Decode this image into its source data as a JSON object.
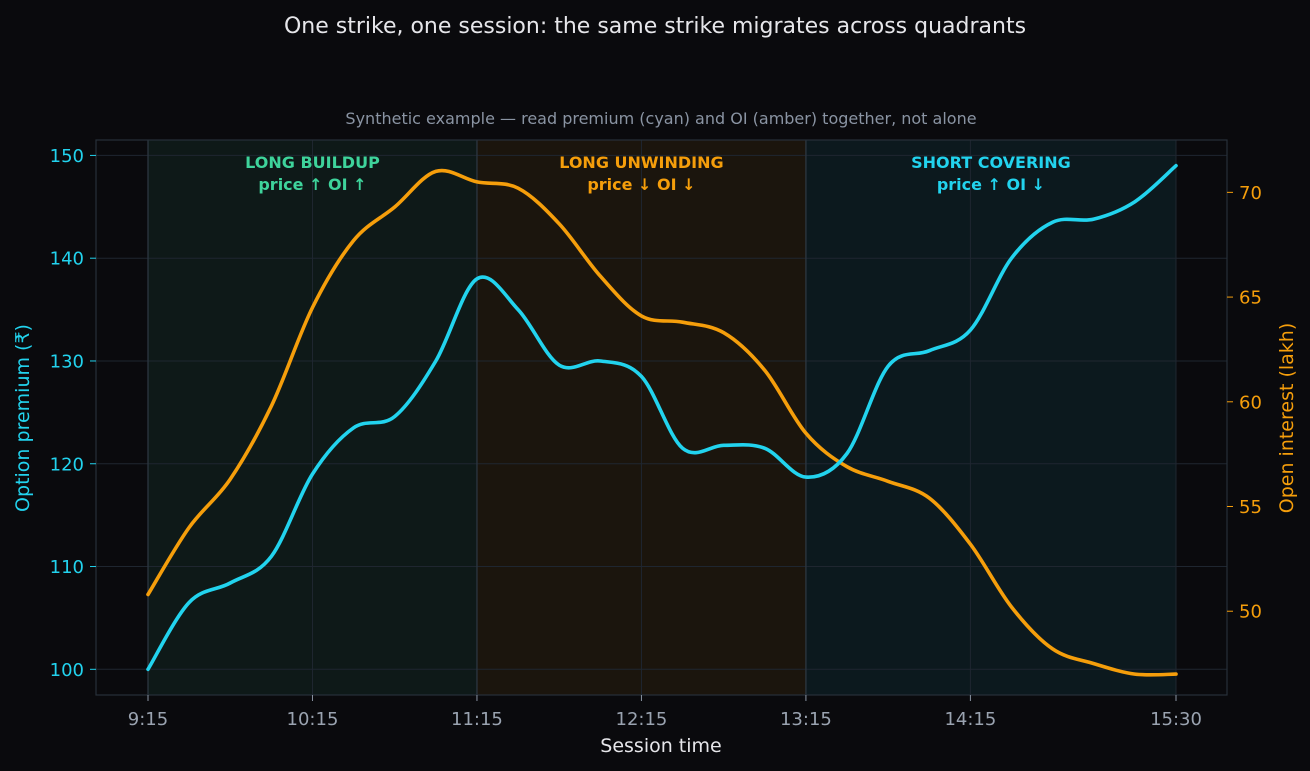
{
  "chart_data": {
    "type": "line",
    "title": "One strike, one session: the same strike migrates across quadrants",
    "subtitle": "Synthetic example — read premium (cyan) and OI (amber) together, not alone",
    "xlabel": "Session time",
    "ylabel_left": "Option premium (₹)",
    "ylabel_right": "Open interest (lakh)",
    "x_ticks": [
      "9:15",
      "10:15",
      "11:15",
      "12:15",
      "13:15",
      "14:15",
      "15:30"
    ],
    "y_left_ticks": [
      100,
      110,
      120,
      130,
      140,
      150
    ],
    "y_right_ticks": [
      50,
      55,
      60,
      65,
      70
    ],
    "ylim_left": [
      97.5,
      151.5
    ],
    "ylim_right": [
      46.0,
      72.5
    ],
    "grid": true,
    "zones": [
      {
        "label": "LONG BUILDUP",
        "sublabel": "price ↑ OI ↑",
        "color": "#3ed39b",
        "x_start": "9:15",
        "x_end": "11:15"
      },
      {
        "label": "LONG UNWINDING",
        "sublabel": "price ↓ OI ↓",
        "color": "#f59e0b",
        "x_start": "11:15",
        "x_end": "13:15"
      },
      {
        "label": "SHORT COVERING",
        "sublabel": "price ↑ OI ↓",
        "color": "#22d3ee",
        "x_start": "13:15",
        "x_end": "15:30"
      }
    ],
    "series": [
      {
        "axis": "left",
        "color": "#22d3ee",
        "x_minutes_from_open": [
          0,
          15,
          30,
          45,
          60,
          75,
          90,
          105,
          120,
          135,
          150,
          165,
          180,
          195,
          210,
          225,
          240,
          255,
          270,
          285,
          300,
          315,
          330,
          345,
          360,
          375
        ],
        "values": [
          100,
          106.5,
          108.4,
          111,
          119,
          123.5,
          124.6,
          130,
          138,
          135,
          129.6,
          130,
          128.5,
          121.5,
          121.8,
          121.5,
          118.7,
          121,
          129.5,
          131,
          133,
          140,
          143.5,
          143.8,
          145.5,
          149
        ]
      },
      {
        "axis": "right",
        "color": "#f59e0b",
        "x_minutes_from_open": [
          0,
          15,
          30,
          45,
          60,
          75,
          90,
          105,
          120,
          135,
          150,
          165,
          180,
          195,
          210,
          225,
          240,
          255,
          270,
          285,
          300,
          315,
          330,
          345,
          360,
          375
        ],
        "values": [
          50.8,
          54,
          56.3,
          59.8,
          64.5,
          67.7,
          69.3,
          71,
          70.5,
          70.2,
          68.5,
          66,
          64.1,
          63.8,
          63.3,
          61.5,
          58.5,
          56.9,
          56.2,
          55.4,
          53.2,
          50.2,
          48.2,
          47.5,
          47.0,
          47.0
        ]
      }
    ]
  }
}
